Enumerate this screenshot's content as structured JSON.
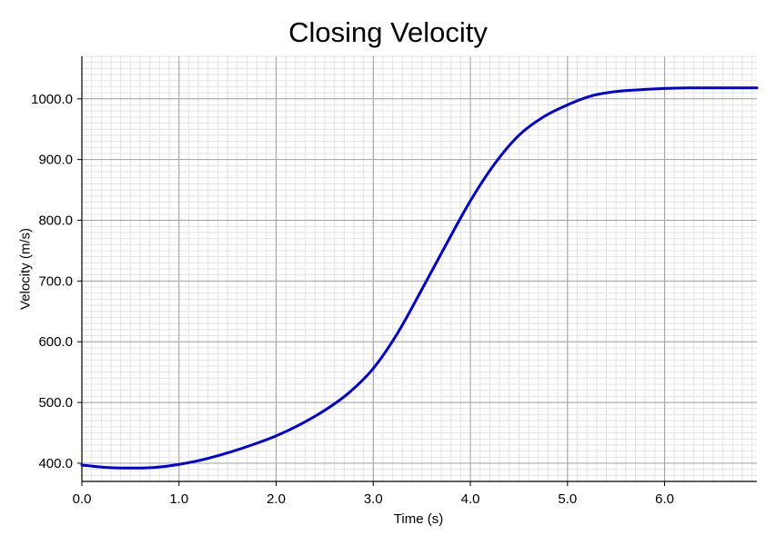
{
  "chart_data": {
    "type": "line",
    "title": "Closing Velocity",
    "xlabel": "Time (s)",
    "ylabel": "Velocity (m/s)",
    "xlim": [
      0.0,
      6.95
    ],
    "ylim": [
      370,
      1070
    ],
    "xticks": [
      "0.0",
      "1.0",
      "2.0",
      "3.0",
      "4.0",
      "5.0",
      "6.0"
    ],
    "yticks": [
      "400.0",
      "500.0",
      "600.0",
      "700.0",
      "800.0",
      "900.0",
      "1000.0"
    ],
    "grid": true,
    "line_color": "#0000dd",
    "series": [
      {
        "x": [
          0.0,
          0.25,
          0.5,
          0.75,
          1.0,
          1.25,
          1.5,
          1.75,
          2.0,
          2.25,
          2.5,
          2.75,
          3.0,
          3.25,
          3.5,
          3.75,
          4.0,
          4.25,
          4.5,
          4.75,
          5.0,
          5.25,
          5.5,
          5.75,
          6.0,
          6.25,
          6.5,
          6.75,
          6.95
        ],
        "values": [
          397,
          393,
          392,
          393,
          398,
          406,
          417,
          430,
          445,
          464,
          487,
          516,
          556,
          614,
          686,
          760,
          832,
          893,
          940,
          970,
          990,
          1005,
          1012,
          1015,
          1017,
          1018,
          1018,
          1018,
          1018
        ]
      }
    ]
  }
}
